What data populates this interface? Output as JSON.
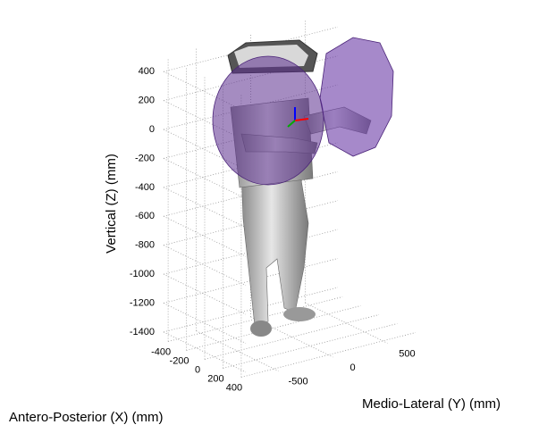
{
  "chart_data": {
    "type": "axes3d",
    "xlabel": "Antero-Posterior (X) (mm)",
    "ylabel": "Medio-Lateral (Y) (mm)",
    "zlabel": "Vertical (Z) (mm)",
    "xlim": [
      -450,
      450
    ],
    "ylim": [
      -800,
      800
    ],
    "zlim": [
      -1450,
      500
    ],
    "xticks": [
      -400,
      -200,
      0,
      200,
      400
    ],
    "yticks": [
      -500,
      0,
      500
    ],
    "zticks": [
      400,
      200,
      0,
      -200,
      -400,
      -600,
      -800,
      -1000,
      -1200,
      -1400
    ],
    "grid": true
  }
}
